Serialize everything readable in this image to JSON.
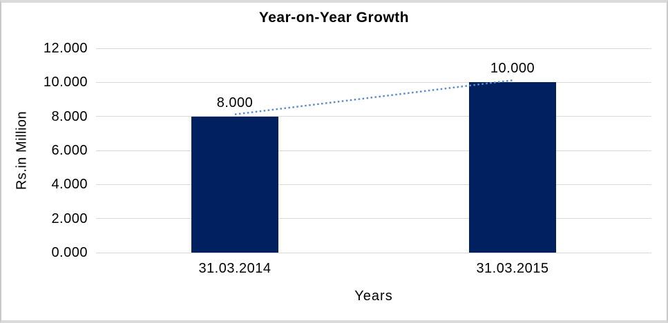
{
  "chart": {
    "title": "Year-on-Year Growth",
    "y_axis_title": "Rs.in Million",
    "x_axis_title": "Years"
  },
  "chart_data": {
    "type": "bar",
    "title": "Year-on-Year Growth",
    "xlabel": "Years",
    "ylabel": "Rs.in Million",
    "categories": [
      "31.03.2014",
      "31.03.2015"
    ],
    "series": [
      {
        "name": "Year-on-Year Growth",
        "values": [
          8000,
          10000
        ],
        "value_labels": [
          "8.000",
          "10.000"
        ]
      }
    ],
    "y_ticks": [
      "0.000",
      "2.000",
      "4.000",
      "6.000",
      "8.000",
      "10.000",
      "12.000"
    ],
    "y_tick_values": [
      0,
      2000,
      4000,
      6000,
      8000,
      10000,
      12000
    ],
    "ylim": [
      0,
      12000
    ],
    "number_format": "dot as thousands separator",
    "grid": "horizontal",
    "legend_position": "none",
    "trendline": {
      "style": "dotted",
      "from_value": 8000,
      "to_value": 10000,
      "color": "#5a8ccd"
    },
    "colors": {
      "bar": "#002060",
      "gridline": "#d9d9d9",
      "trendline": "#5a8ccd",
      "text": "#000000",
      "background": "#ffffff",
      "border": "#d9d9d9"
    }
  }
}
